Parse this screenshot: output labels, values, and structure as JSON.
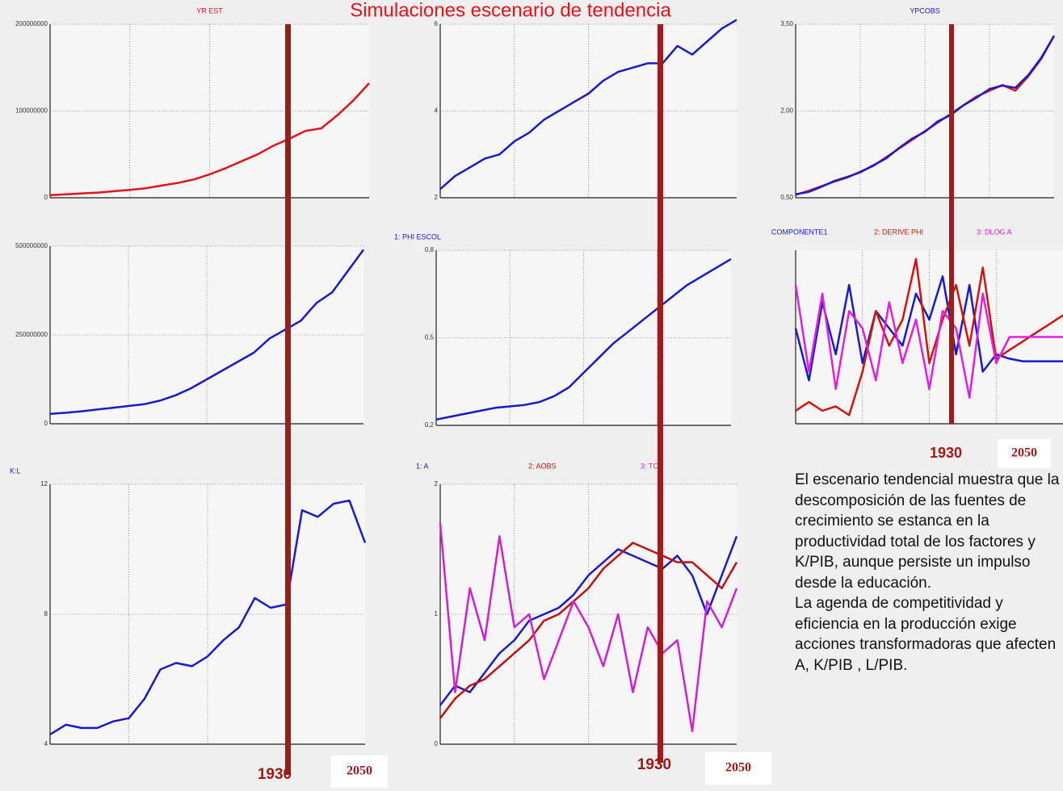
{
  "title": "Simulaciones escenario de tendencia",
  "markers": [
    "1930",
    "2050"
  ],
  "paragraph": [
    "El escenario tendencial muestra que la descomposición de las fuentes de crecimiento se estanca en la productividad total de los factores y K/PIB, aunque persiste un impulso desde la educación.",
    "La agenda de competitividad y eficiencia en la producción exige acciones transformadoras que afecten A, K/PIB , L/PIB."
  ],
  "chart_data": [
    {
      "type": "line",
      "title": "YR EST",
      "ylim": [
        0,
        200000000
      ],
      "yticks": [
        0,
        100000000,
        200000000
      ],
      "series": [
        {
          "color": "#e0141a",
          "values": [
            3000000,
            4000000,
            5000000,
            6000000,
            7500000,
            9000000,
            11000000,
            14000000,
            17000000,
            21000000,
            27000000,
            34000000,
            42000000,
            50000000,
            60000000,
            68000000,
            77000000,
            80000000,
            95000000,
            112000000,
            132000000
          ]
        }
      ]
    },
    {
      "type": "line",
      "ylim": [
        2,
        6
      ],
      "yticks": [
        2,
        4,
        6
      ],
      "series": [
        {
          "color": "#1a1ac8",
          "values": [
            2.2,
            2.5,
            2.7,
            2.9,
            3.0,
            3.3,
            3.5,
            3.8,
            4.0,
            4.2,
            4.4,
            4.7,
            4.9,
            5.0,
            5.1,
            5.1,
            5.5,
            5.3,
            5.6,
            5.9,
            6.1
          ]
        }
      ]
    },
    {
      "type": "line",
      "title": "YPCOBS",
      "ylim": [
        0.5,
        3.5
      ],
      "yticks": [
        {
          "value": 0.5,
          "label": "0,50"
        },
        {
          "value": 2,
          "label": "2,00"
        },
        {
          "value": 3.5,
          "label": "3,50"
        }
      ],
      "series": [
        {
          "color": "#e0141a",
          "values": [
            0.55,
            0.62,
            0.7,
            0.78,
            0.85,
            0.95,
            1.05,
            1.2,
            1.35,
            1.5,
            1.65,
            1.8,
            1.95,
            2.1,
            2.25,
            2.35,
            2.45,
            2.35,
            2.6,
            2.9,
            3.3
          ]
        },
        {
          "color": "#1a1ac8",
          "values": [
            0.56,
            0.6,
            0.69,
            0.79,
            0.86,
            0.94,
            1.06,
            1.18,
            1.36,
            1.52,
            1.64,
            1.82,
            1.93,
            2.1,
            2.23,
            2.38,
            2.44,
            2.4,
            2.62,
            2.92,
            3.3
          ]
        }
      ]
    },
    {
      "type": "line",
      "ylim": [
        0,
        500000000
      ],
      "yticks": [
        0,
        250000000,
        500000000
      ],
      "series": [
        {
          "color": "#1a1ac8",
          "values": [
            28000000,
            31000000,
            35000000,
            40000000,
            45000000,
            50000000,
            55000000,
            65000000,
            80000000,
            100000000,
            125000000,
            150000000,
            175000000,
            200000000,
            240000000,
            265000000,
            290000000,
            340000000,
            370000000,
            430000000,
            490000000
          ]
        }
      ]
    },
    {
      "type": "line",
      "title": "1: PHI ESCOL",
      "ylim": [
        0.2,
        0.8
      ],
      "yticks": [
        {
          "value": 0.2,
          "label": "0,2"
        },
        {
          "value": 0.5,
          "label": "0,5"
        },
        {
          "value": 0.8,
          "label": "0,8"
        }
      ],
      "series": [
        {
          "color": "#1a1ac8",
          "values": [
            0.22,
            0.23,
            0.24,
            0.25,
            0.26,
            0.265,
            0.27,
            0.28,
            0.3,
            0.33,
            0.38,
            0.43,
            0.48,
            0.52,
            0.56,
            0.6,
            0.64,
            0.68,
            0.71,
            0.74,
            0.77
          ]
        }
      ]
    },
    {
      "type": "line",
      "ylim": [
        -1,
        1
      ],
      "series": [
        {
          "name": "COMPONENTE1",
          "color": "#1a1ac8",
          "values": [
            0.1,
            -0.5,
            0.4,
            -0.2,
            0.6,
            -0.3,
            0.3,
            0.1,
            -0.1,
            0.5,
            0.2,
            0.7,
            -0.2,
            0.6,
            -0.4,
            -0.2,
            -0.25,
            -0.28,
            -0.28,
            -0.28,
            -0.28
          ]
        },
        {
          "name": "2: DERIVE PHI",
          "color": "#d0140e",
          "values": [
            -0.85,
            -0.75,
            -0.85,
            -0.8,
            -0.9,
            -0.4,
            0.3,
            -0.1,
            0.2,
            0.9,
            -0.3,
            0.2,
            0.6,
            -0.1,
            0.8,
            -0.25,
            -0.15,
            -0.05,
            0.05,
            0.15,
            0.25
          ]
        },
        {
          "name": "3: DLOG A",
          "color": "#e020e0",
          "values": [
            0.6,
            -0.4,
            0.5,
            -0.6,
            0.3,
            0.1,
            -0.5,
            0.4,
            -0.3,
            0.2,
            -0.6,
            0.3,
            0.1,
            -0.7,
            0.5,
            -0.3,
            0.0,
            0.0,
            0.0,
            0.0,
            0.0
          ]
        }
      ]
    },
    {
      "type": "line",
      "title": "K:L",
      "ylim": [
        4,
        12
      ],
      "yticks": [
        4,
        8,
        12
      ],
      "series": [
        {
          "color": "#1a1ac8",
          "values": [
            4.3,
            4.6,
            4.5,
            4.5,
            4.7,
            4.8,
            5.4,
            6.3,
            6.5,
            6.4,
            6.7,
            7.2,
            7.6,
            8.5,
            8.2,
            8.3,
            11.2,
            11.0,
            11.4,
            11.5,
            10.2
          ]
        }
      ]
    },
    {
      "type": "line",
      "ylim": [
        0,
        2
      ],
      "yticks": [
        0,
        1,
        2
      ],
      "series": [
        {
          "name": "1: A",
          "color": "#1a1ac8",
          "values": [
            0.3,
            0.45,
            0.4,
            0.55,
            0.7,
            0.8,
            0.95,
            1.0,
            1.05,
            1.15,
            1.3,
            1.4,
            1.5,
            1.45,
            1.4,
            1.35,
            1.45,
            1.3,
            1.0,
            1.3,
            1.6
          ]
        },
        {
          "name": "2: AOBS",
          "color": "#c01010",
          "values": [
            0.2,
            0.35,
            0.45,
            0.5,
            0.6,
            0.7,
            0.8,
            0.95,
            1.0,
            1.1,
            1.2,
            1.35,
            1.45,
            1.55,
            1.5,
            1.45,
            1.4,
            1.4,
            1.3,
            1.2,
            1.4
          ]
        },
        {
          "name": "3: TCA",
          "color": "#d020d0",
          "values": [
            1.7,
            0.4,
            1.2,
            0.8,
            1.6,
            0.9,
            1.0,
            0.5,
            0.8,
            1.1,
            0.9,
            0.6,
            1.0,
            0.4,
            0.9,
            0.7,
            0.8,
            0.1,
            1.1,
            0.9,
            1.2
          ]
        }
      ]
    }
  ]
}
